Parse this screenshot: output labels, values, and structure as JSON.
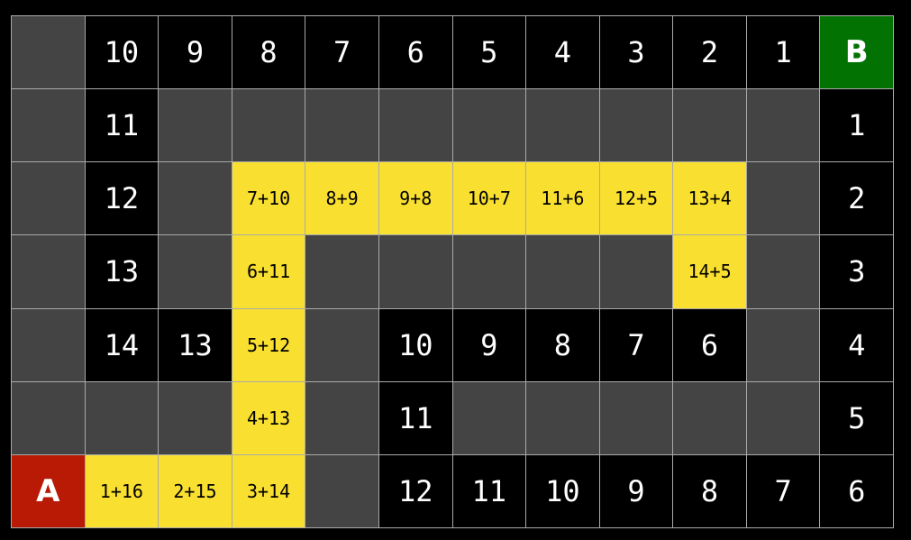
{
  "colors": {
    "wall": "#444444",
    "open": "#000000",
    "path": "#f9e030",
    "start": "#b81a06",
    "goal": "#027203"
  },
  "grid": [
    [
      "#",
      "10",
      "9",
      "8",
      "7",
      "6",
      "5",
      "4",
      "3",
      "2",
      "1",
      "B"
    ],
    [
      "#",
      "11",
      "#",
      "#",
      "#",
      "#",
      "#",
      "#",
      "#",
      "#",
      "#",
      "1"
    ],
    [
      "#",
      "12",
      "#",
      "7+10",
      "8+9",
      "9+8",
      "10+7",
      "11+6",
      "12+5",
      "13+4",
      "#",
      "2"
    ],
    [
      "#",
      "13",
      "#",
      "6+11",
      "#",
      "#",
      "#",
      "#",
      "#",
      "14+5",
      "#",
      "3"
    ],
    [
      "#",
      "14",
      "13",
      "5+12",
      "#",
      "10",
      "9",
      "8",
      "7",
      "6",
      "#",
      "4"
    ],
    [
      "#",
      "#",
      "#",
      "4+13",
      "#",
      "11",
      "#",
      "#",
      "#",
      "#",
      "#",
      "5"
    ],
    [
      "A",
      "1+16",
      "2+15",
      "3+14",
      "#",
      "12",
      "11",
      "10",
      "9",
      "8",
      "7",
      "6"
    ]
  ]
}
